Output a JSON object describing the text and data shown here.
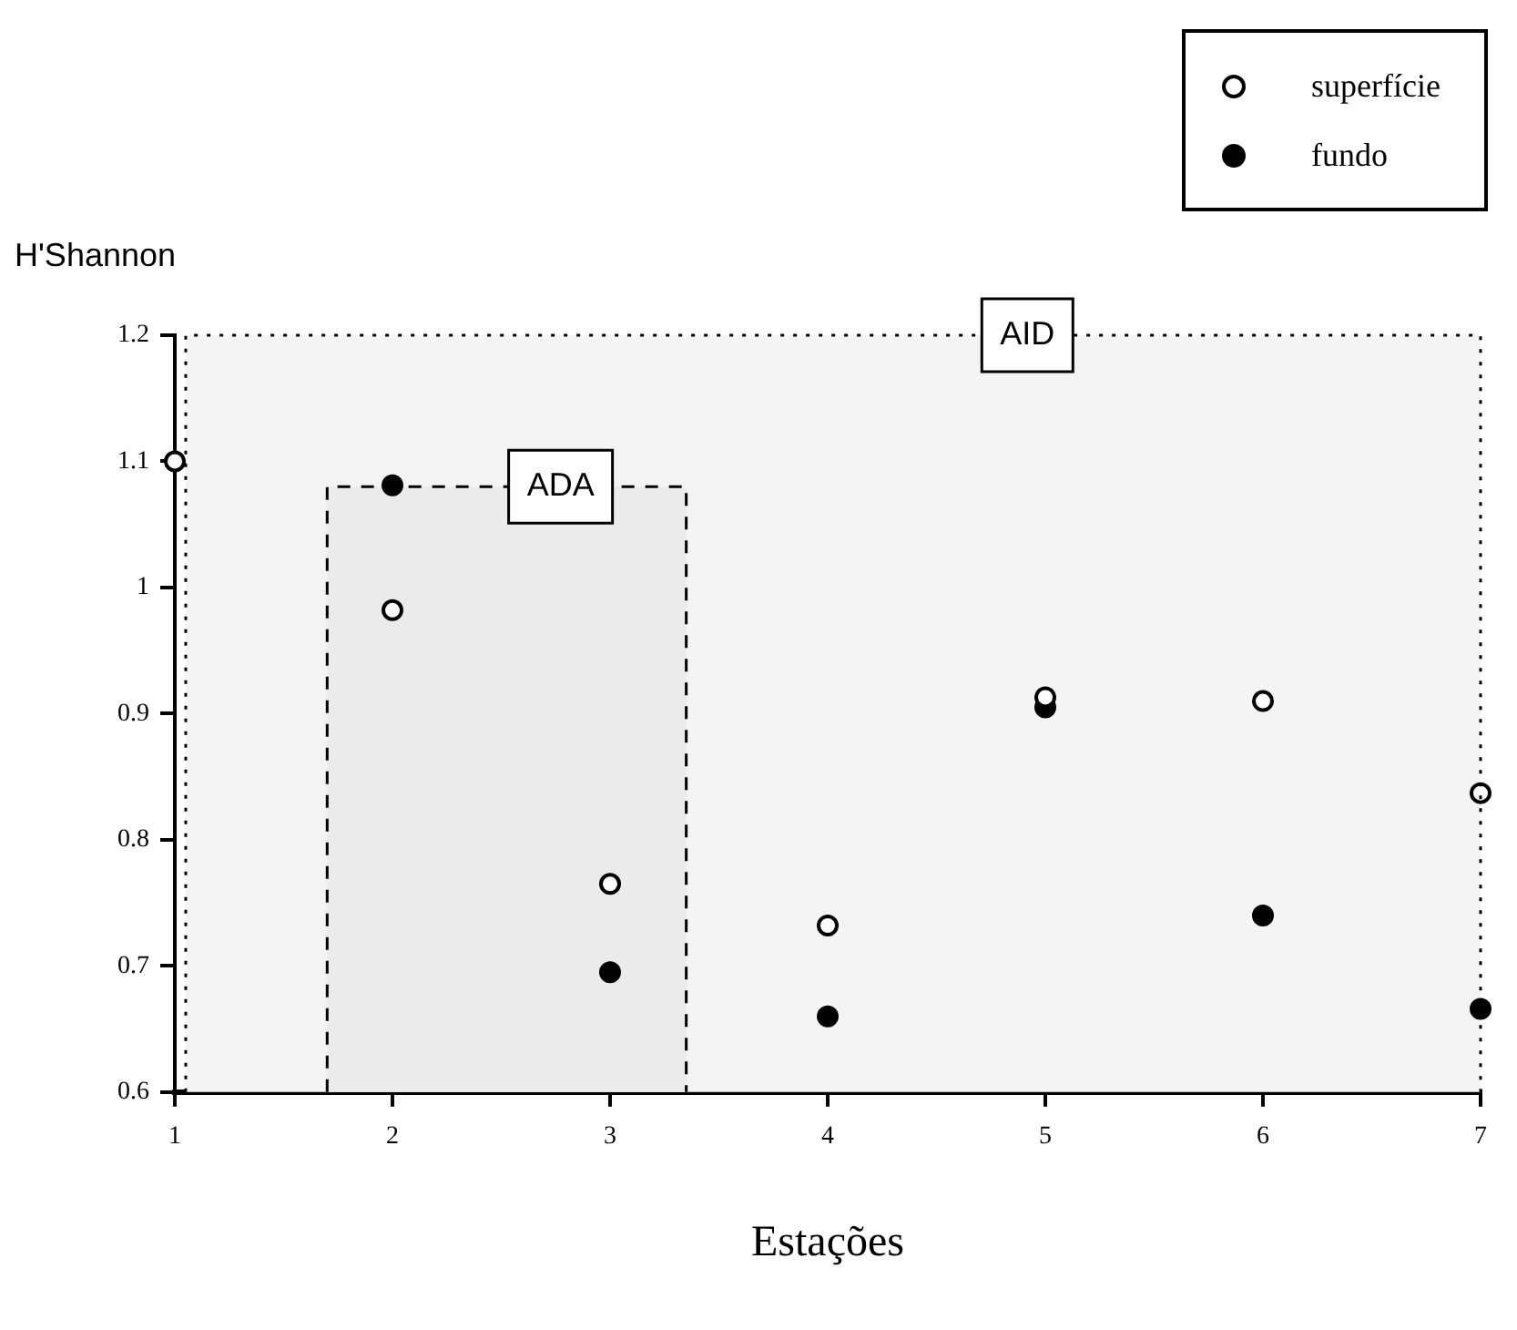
{
  "chart_data": {
    "type": "scatter",
    "xlabel": "Estações",
    "ylabel": "H'Shannon",
    "x": [
      1,
      2,
      3,
      4,
      5,
      6,
      7
    ],
    "series": [
      {
        "name": "superfície",
        "color": "#000000",
        "values": [
          1.1,
          0.982,
          0.765,
          0.732,
          0.913,
          0.91,
          0.837
        ]
      },
      {
        "name": "fundo",
        "color": "#000000",
        "values": [
          null,
          1.081,
          0.695,
          0.66,
          0.905,
          0.74,
          0.666
        ]
      }
    ],
    "xlim": [
      1,
      7
    ],
    "xticks": [
      1,
      2,
      3,
      4,
      5,
      6,
      7
    ],
    "ylim": [
      0.6,
      1.2
    ],
    "yticks": [
      0.6,
      0.7,
      0.8,
      0.9,
      1,
      1.1,
      1.2
    ],
    "bands": [
      {
        "axis": "x",
        "from": 1.05,
        "to": 7,
        "label": "AID",
        "color": "#f4f4f4"
      },
      {
        "axis": "x",
        "from": 1.7,
        "to": 3.35,
        "label": "ADA",
        "color": "#ebebeb"
      }
    ],
    "grid": false,
    "legend": "top right",
    "marker": "circle"
  }
}
